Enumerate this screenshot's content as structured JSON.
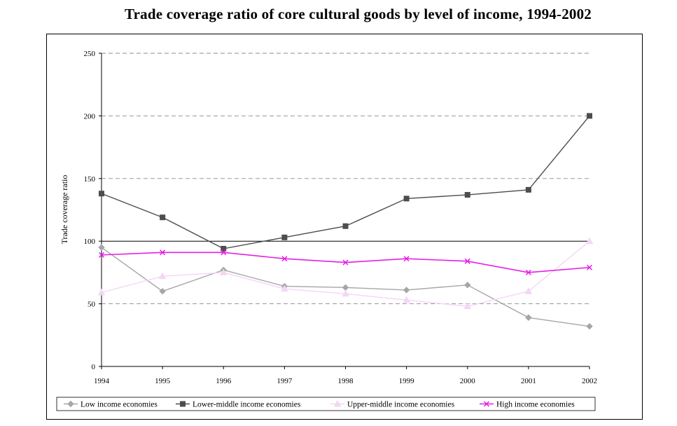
{
  "chart_data": {
    "type": "line",
    "title": "Trade coverage ratio of core cultural goods by level of income, 1994-2002",
    "xlabel": "",
    "ylabel": "Trade coverage ratio",
    "ylim": [
      0,
      250
    ],
    "yticks": [
      0,
      50,
      100,
      150,
      200,
      250
    ],
    "reference_line": 100,
    "grid": "dashed horizontal",
    "legend_position": "bottom",
    "categories": [
      "1994",
      "1995",
      "1996",
      "1997",
      "1998",
      "1999",
      "2000",
      "2001",
      "2002"
    ],
    "series": [
      {
        "name": "Low income economies",
        "marker": "diamond",
        "color": "#a6a6a6",
        "values": [
          95,
          60,
          77,
          64,
          63,
          61,
          65,
          39,
          32
        ]
      },
      {
        "name": "Lower-middle income economies",
        "marker": "square",
        "color": "#4d4d4d",
        "values": [
          138,
          119,
          94,
          103,
          112,
          134,
          137,
          141,
          200
        ]
      },
      {
        "name": "Upper-middle income economies",
        "marker": "triangle",
        "color": "#f4d6f4",
        "values": [
          59,
          72,
          75,
          62,
          58,
          53,
          48,
          60,
          100
        ]
      },
      {
        "name": "High income economies",
        "marker": "cross",
        "color": "#e61fe6",
        "values": [
          89,
          91,
          91,
          86,
          83,
          86,
          84,
          75,
          79
        ]
      }
    ]
  }
}
